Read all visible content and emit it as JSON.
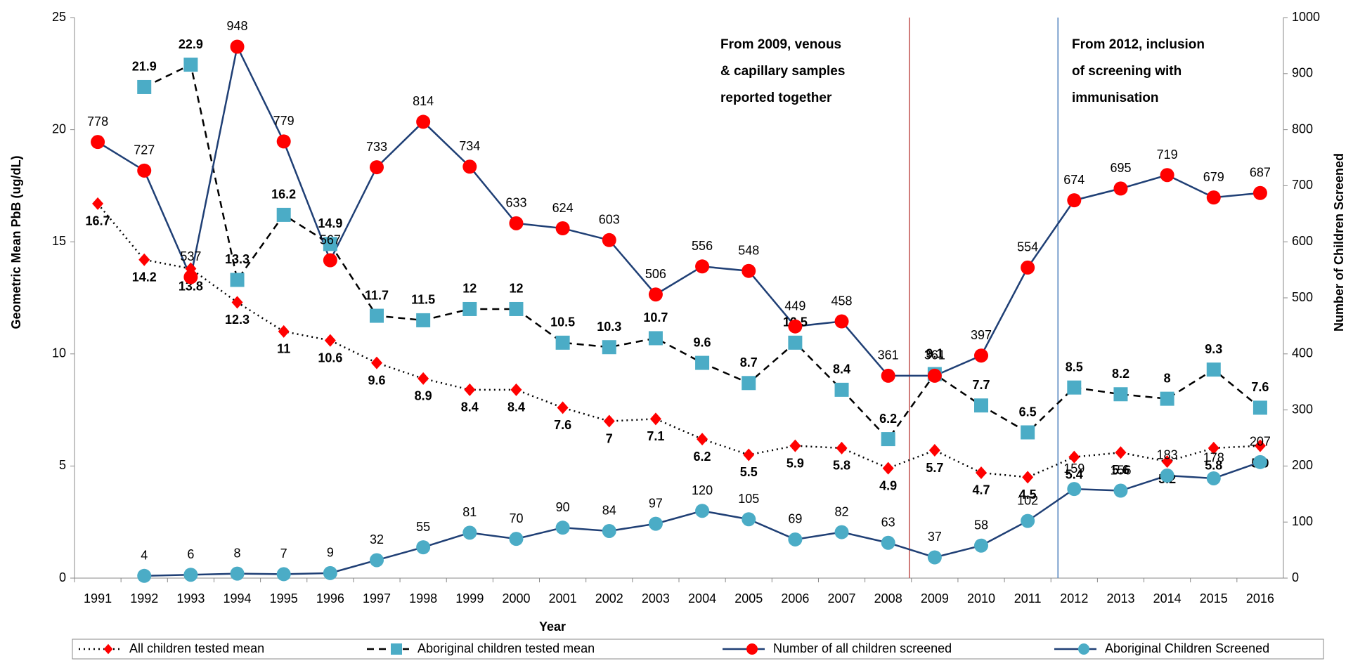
{
  "chart_data": {
    "type": "line",
    "x_label": "Year",
    "y_label": "Geometric Mean PbB (ug/dL)",
    "y2_label": "Number of Children Screened",
    "categories": [
      "1991",
      "1992",
      "1993",
      "1994",
      "1995",
      "1996",
      "1997",
      "1998",
      "1999",
      "2000",
      "2001",
      "2002",
      "2003",
      "2004",
      "2005",
      "2006",
      "2007",
      "2008",
      "2009",
      "2010",
      "2011",
      "2012",
      "2013",
      "2014",
      "2015",
      "2016"
    ],
    "ylim": [
      0,
      25
    ],
    "yticks": [
      0,
      5,
      10,
      15,
      20,
      25
    ],
    "y2lim": [
      0,
      1000
    ],
    "y2ticks": [
      0,
      100,
      200,
      300,
      400,
      500,
      600,
      700,
      800,
      900,
      1000
    ],
    "legend": "bottom",
    "annotations": [
      {
        "lines": [
          "From 2009, venous",
          "& capillary samples",
          "reported together"
        ],
        "color": "#c0504d"
      },
      {
        "lines": [
          "From 2012, inclusion",
          "of screening with",
          "immunisation"
        ],
        "color": "#4f81bd"
      }
    ],
    "series": [
      {
        "name": "All children tested mean",
        "color": "#ff0000",
        "line_color": "#000000",
        "line_style": "dotted",
        "marker": "diamond",
        "values": [
          16.7,
          14.2,
          13.8,
          12.3,
          11,
          10.6,
          9.6,
          8.9,
          8.4,
          8.4,
          7.6,
          7,
          7.1,
          6.2,
          5.5,
          5.9,
          5.8,
          4.9,
          5.7,
          4.7,
          4.5,
          5.4,
          5.6,
          5.2,
          5.8,
          5.9
        ]
      },
      {
        "name": "Aboriginal children tested mean",
        "color": "#4bacc6",
        "line_color": "#000000",
        "line_style": "dashed",
        "marker": "square",
        "values": [
          null,
          21.9,
          22.9,
          13.3,
          16.2,
          14.9,
          11.7,
          11.5,
          12,
          12,
          10.5,
          10.3,
          10.7,
          9.6,
          8.7,
          10.5,
          8.4,
          6.2,
          9.1,
          7.7,
          6.5,
          8.5,
          8.2,
          8,
          9.3,
          7.6
        ]
      },
      {
        "name": "Number of all children screened",
        "color": "#ff0000",
        "line_color": "#1f3f75",
        "line_style": "solid",
        "marker": "circle",
        "axis": "y2",
        "values": [
          778,
          727,
          537,
          948,
          779,
          567,
          733,
          814,
          734,
          633,
          624,
          603,
          506,
          556,
          548,
          449,
          458,
          361,
          361,
          397,
          554,
          674,
          695,
          719,
          679,
          687
        ]
      },
      {
        "name": "Aboriginal Children Screened",
        "color": "#4bacc6",
        "line_color": "#1f3f75",
        "line_style": "solid",
        "marker": "circle",
        "axis": "y2",
        "values": [
          null,
          4,
          6,
          8,
          7,
          9,
          32,
          55,
          81,
          70,
          90,
          84,
          97,
          120,
          105,
          69,
          82,
          63,
          37,
          58,
          102,
          159,
          156,
          183,
          178,
          207
        ]
      }
    ]
  }
}
